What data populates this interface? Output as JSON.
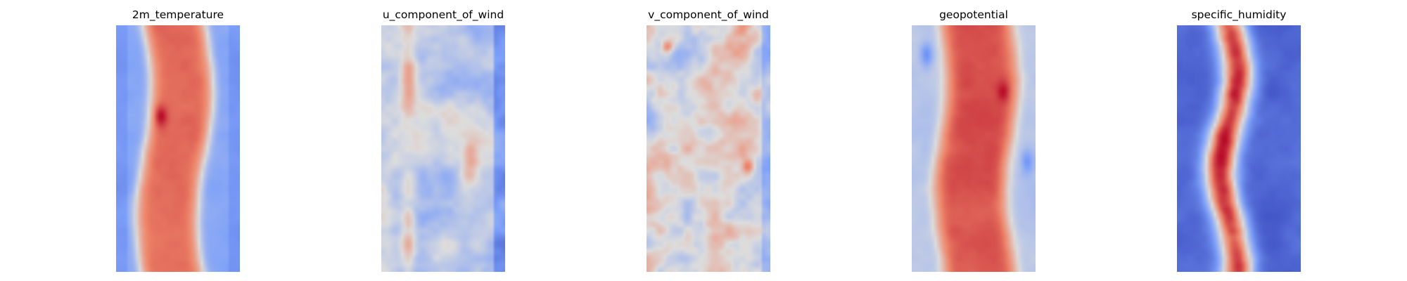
{
  "colormap": {
    "name": "coolwarm",
    "low": "#3b4cc0",
    "mid": "#dddddd",
    "high": "#b40426"
  },
  "panels": [
    {
      "title": "2m_temperature",
      "field": "temperature"
    },
    {
      "title": "u_component_of_wind",
      "field": "u_wind"
    },
    {
      "title": "v_component_of_wind",
      "field": "v_wind"
    },
    {
      "title": "geopotential",
      "field": "geopotential"
    },
    {
      "title": "specific_humidity",
      "field": "humidity"
    }
  ]
}
